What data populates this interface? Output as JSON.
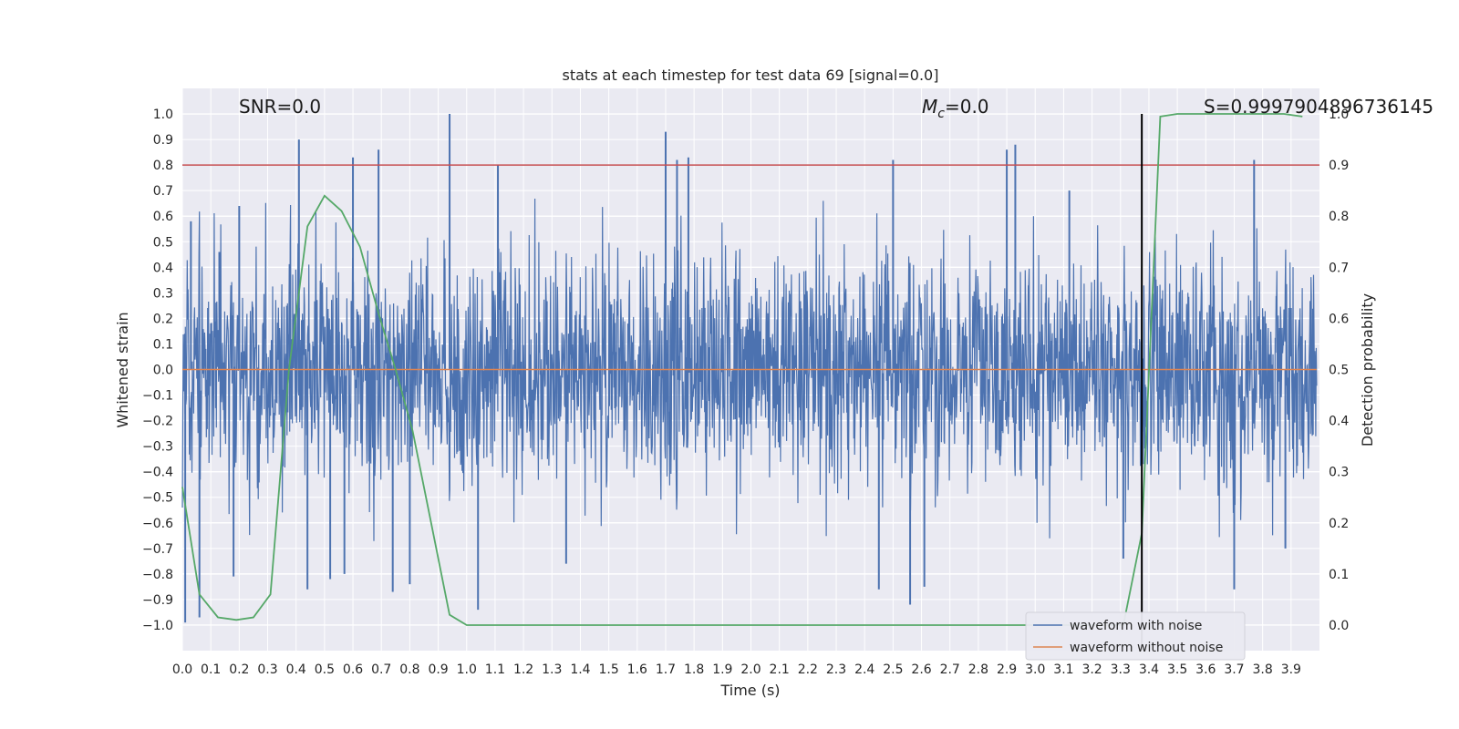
{
  "chart_data": {
    "type": "line",
    "title": "stats at each timestep for test data 69 [signal=0.0]",
    "xlabel": "Time (s)",
    "ylabel": "Whitened strain",
    "y2label": "Detection probability",
    "xlim": [
      0.0,
      4.0
    ],
    "ylim": [
      -1.1,
      1.1
    ],
    "y2lim": [
      -0.05,
      1.05
    ],
    "xticks": [
      "0.0",
      "0.1",
      "0.2",
      "0.3",
      "0.4",
      "0.5",
      "0.6",
      "0.7",
      "0.8",
      "0.9",
      "1.0",
      "1.1",
      "1.2",
      "1.3",
      "1.4",
      "1.5",
      "1.6",
      "1.7",
      "1.8",
      "1.9",
      "2.0",
      "2.1",
      "2.2",
      "2.3",
      "2.4",
      "2.5",
      "2.6",
      "2.7",
      "2.8",
      "2.9",
      "3.0",
      "3.1",
      "3.2",
      "3.3",
      "3.4",
      "3.5",
      "3.6",
      "3.7",
      "3.8",
      "3.9"
    ],
    "yticks": [
      "1.0",
      "0.9",
      "0.8",
      "0.7",
      "0.6",
      "0.5",
      "0.4",
      "0.3",
      "0.2",
      "0.1",
      "0.0",
      "-0.1",
      "-0.2",
      "-0.3",
      "-0.4",
      "-0.5",
      "-0.6",
      "-0.7",
      "-0.8",
      "-0.9",
      "-1.0"
    ],
    "y2ticks": [
      "1.0",
      "0.9",
      "0.8",
      "0.7",
      "0.6",
      "0.5",
      "0.4",
      "0.3",
      "0.2",
      "0.1",
      "0.0"
    ],
    "grid": true,
    "legend_position": "lower-right",
    "series": [
      {
        "name": "waveform with noise",
        "color": "#4c72b0",
        "axis": "left",
        "note_values": "dense noise trace",
        "spikes": [
          [
            0.01,
            -0.99
          ],
          [
            0.03,
            0.58
          ],
          [
            0.06,
            -0.97
          ],
          [
            0.13,
            0.46
          ],
          [
            0.18,
            -0.81
          ],
          [
            0.2,
            0.64
          ],
          [
            0.41,
            0.9
          ],
          [
            0.44,
            -0.86
          ],
          [
            0.52,
            -0.82
          ],
          [
            0.57,
            -0.8
          ],
          [
            0.6,
            0.83
          ],
          [
            0.69,
            0.86
          ],
          [
            0.74,
            -0.87
          ],
          [
            0.8,
            -0.84
          ],
          [
            0.94,
            1.0
          ],
          [
            1.04,
            -0.94
          ],
          [
            1.11,
            0.8
          ],
          [
            1.35,
            -0.76
          ],
          [
            1.7,
            0.93
          ],
          [
            1.74,
            0.82
          ],
          [
            1.78,
            0.83
          ],
          [
            2.45,
            -0.86
          ],
          [
            2.5,
            0.82
          ],
          [
            2.56,
            -0.92
          ],
          [
            2.61,
            -0.85
          ],
          [
            2.9,
            0.86
          ],
          [
            2.93,
            0.88
          ],
          [
            3.12,
            0.7
          ],
          [
            3.31,
            -0.74
          ],
          [
            3.7,
            -0.86
          ],
          [
            3.77,
            0.82
          ],
          [
            3.88,
            -0.7
          ]
        ]
      },
      {
        "name": "waveform without noise",
        "color": "#dd8452",
        "axis": "left",
        "x": [
          0.0,
          3.99
        ],
        "y": [
          0.0,
          0.0
        ]
      },
      {
        "name": "detection probability",
        "color": "#55a868",
        "axis": "right",
        "x": [
          0.0,
          0.06,
          0.125,
          0.19,
          0.25,
          0.31,
          0.375,
          0.44,
          0.5,
          0.56,
          0.625,
          0.69,
          0.75,
          0.81,
          0.875,
          0.94,
          1.0,
          1.06,
          1.5,
          2.0,
          2.5,
          3.0,
          3.12,
          3.25,
          3.31,
          3.375,
          3.44,
          3.5,
          3.56,
          3.625,
          3.69,
          3.75,
          3.81,
          3.875,
          3.94
        ],
        "y": [
          0.27,
          0.06,
          0.015,
          0.01,
          0.015,
          0.06,
          0.5,
          0.78,
          0.84,
          0.81,
          0.74,
          0.61,
          0.5,
          0.38,
          0.2,
          0.02,
          0.0,
          0.0,
          0.0,
          0.0,
          0.0,
          0.0,
          0.0,
          0.0,
          0.0,
          0.18,
          0.995,
          1.0,
          1.0,
          1.0,
          1.0,
          1.0,
          1.0,
          1.0,
          0.995
        ]
      }
    ],
    "threshold_line": {
      "y": 0.8,
      "color": "#c44e52"
    },
    "vertical_line": {
      "x": 3.375,
      "color": "#000000"
    }
  },
  "annotations": {
    "snr": "SNR=0.0",
    "mc_symbol": "M",
    "mc_sub": "c",
    "mc_value": "=0.0",
    "s_value": "S=0.9997904896736145"
  },
  "legend": {
    "items": [
      {
        "label": "waveform with noise",
        "color": "#4c72b0"
      },
      {
        "label": "waveform without noise",
        "color": "#dd8452"
      }
    ]
  }
}
